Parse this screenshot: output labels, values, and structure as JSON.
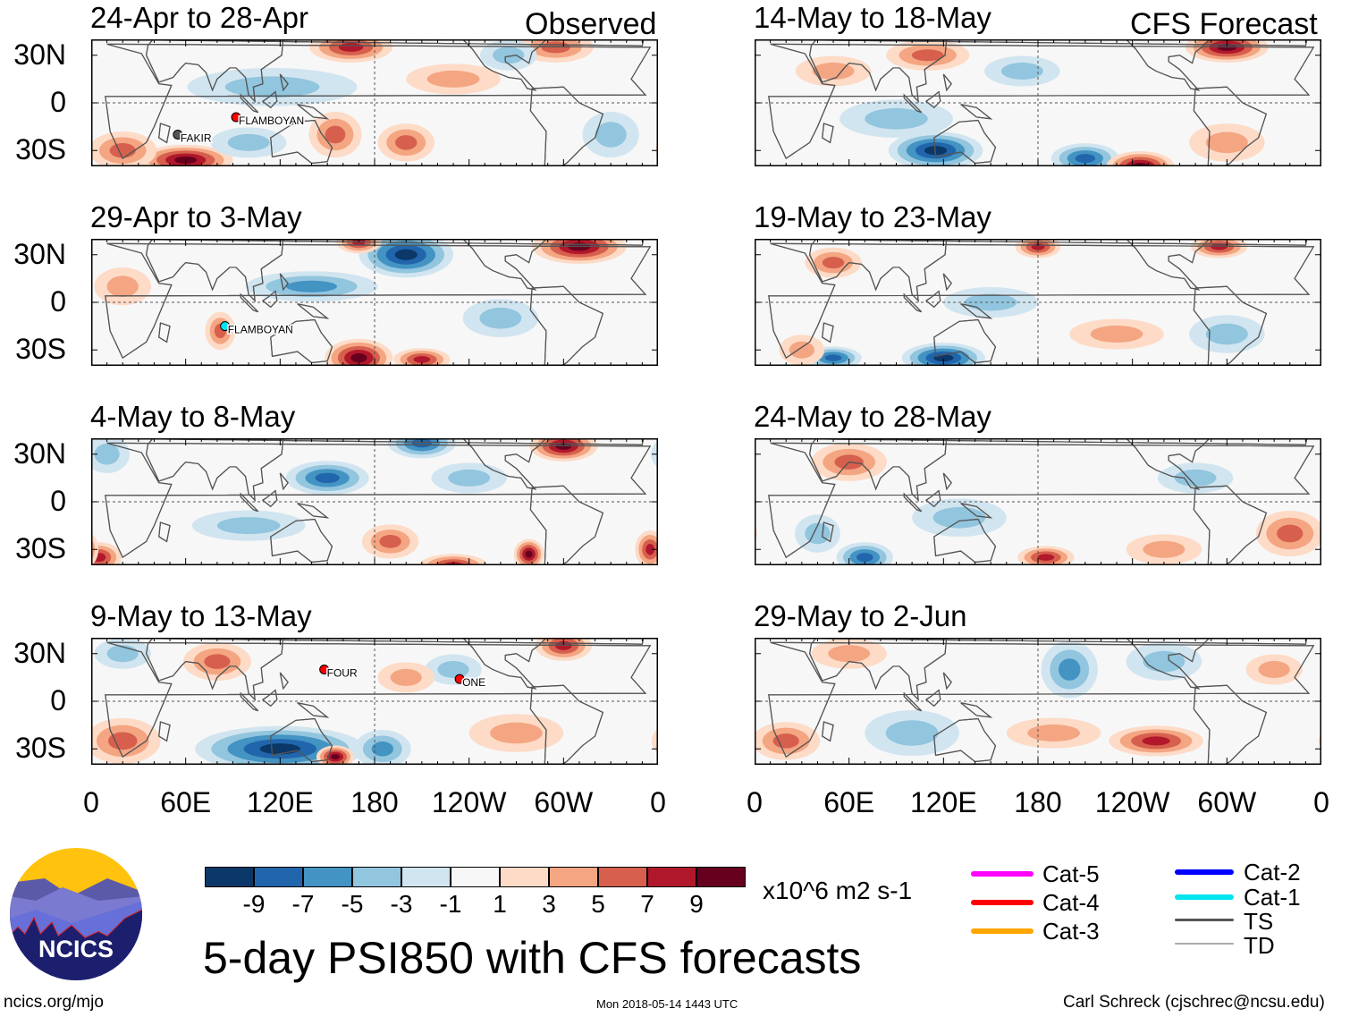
{
  "column_headers": {
    "left": "Observed",
    "right": "CFS Forecast"
  },
  "lat_labels": [
    "30N",
    "0",
    "30S"
  ],
  "lon_labels": [
    "0",
    "60E",
    "120E",
    "180",
    "120W",
    "60W",
    "0"
  ],
  "chart_data": {
    "type": "heatmap",
    "title": "5-day PSI850 with CFS forecasts",
    "units": "x10^6 m2 s-1",
    "lon_range": [
      0,
      360
    ],
    "lat_range": [
      -40,
      40
    ],
    "levels": [
      -9,
      -7,
      -5,
      -3,
      -1,
      1,
      3,
      5,
      7,
      9
    ],
    "level_labels": [
      "-9",
      "-7",
      "-5",
      "-3",
      "-1",
      "1",
      "3",
      "5",
      "7",
      "9"
    ],
    "colors": [
      "#0b3868",
      "#2166ac",
      "#4393c3",
      "#92c5de",
      "#d1e5f0",
      "#f7f7f7",
      "#fddbc7",
      "#f4a582",
      "#d6604d",
      "#b2182b",
      "#67001f"
    ],
    "panels": [
      {
        "title": "24-Apr to 28-Apr",
        "column": "left",
        "row": 0,
        "anomalies": [
          [
            165,
            35,
            7,
            22,
            8
          ],
          [
            60,
            -36,
            9,
            25,
            8
          ],
          [
            20,
            -30,
            5,
            18,
            10
          ],
          [
            115,
            10,
            -3,
            45,
            10
          ],
          [
            155,
            -20,
            5,
            14,
            12
          ],
          [
            200,
            -25,
            5,
            15,
            10
          ],
          [
            295,
            35,
            5,
            20,
            8
          ],
          [
            230,
            15,
            3,
            25,
            8
          ],
          [
            265,
            30,
            -3,
            15,
            8
          ],
          [
            330,
            -20,
            -3,
            15,
            12
          ],
          [
            100,
            -25,
            -3,
            20,
            8
          ]
        ],
        "storms": [
          {
            "name": "FLAMBOYAN",
            "lon": 92,
            "lat": -9,
            "category": "Cat-4"
          },
          {
            "name": "FAKIR",
            "lon": 55,
            "lat": -20,
            "category": "TS"
          }
        ]
      },
      {
        "title": "29-Apr to 3-May",
        "column": "left",
        "row": 1,
        "anomalies": [
          [
            200,
            30,
            -9,
            25,
            12
          ],
          [
            140,
            10,
            -5,
            35,
            8
          ],
          [
            310,
            35,
            9,
            25,
            9
          ],
          [
            170,
            -35,
            9,
            18,
            10
          ],
          [
            210,
            -36,
            7,
            15,
            6
          ],
          [
            82,
            -18,
            5,
            8,
            10
          ],
          [
            170,
            38,
            7,
            12,
            6
          ],
          [
            260,
            -10,
            -3,
            20,
            10
          ],
          [
            20,
            10,
            3,
            15,
            10
          ]
        ],
        "storms": [
          {
            "name": "FLAMBOYAN",
            "lon": 85,
            "lat": -15,
            "category": "Cat-1"
          }
        ]
      },
      {
        "title": "4-May to 8-May",
        "column": "left",
        "row": 2,
        "anomalies": [
          [
            210,
            37,
            -7,
            18,
            8
          ],
          [
            300,
            35,
            9,
            18,
            8
          ],
          [
            150,
            15,
            -7,
            22,
            9
          ],
          [
            190,
            -25,
            5,
            15,
            9
          ],
          [
            230,
            -40,
            7,
            18,
            6
          ],
          [
            278,
            -33,
            9,
            8,
            8
          ],
          [
            5,
            -35,
            7,
            12,
            8
          ],
          [
            100,
            -15,
            -3,
            30,
            8
          ],
          [
            10,
            30,
            -3,
            12,
            10
          ],
          [
            355,
            -30,
            7,
            8,
            10
          ],
          [
            240,
            15,
            -3,
            20,
            8
          ]
        ],
        "storms": []
      },
      {
        "title": "9-May to 13-May",
        "column": "left",
        "row": 3,
        "anomalies": [
          [
            120,
            -30,
            -9,
            45,
            12
          ],
          [
            155,
            -35,
            9,
            10,
            6
          ],
          [
            185,
            -30,
            -5,
            15,
            10
          ],
          [
            20,
            -25,
            5,
            20,
            12
          ],
          [
            80,
            25,
            5,
            18,
            10
          ],
          [
            300,
            35,
            7,
            15,
            8
          ],
          [
            270,
            -20,
            3,
            25,
            10
          ],
          [
            230,
            20,
            -3,
            15,
            8
          ],
          [
            200,
            15,
            3,
            15,
            8
          ],
          [
            20,
            30,
            -3,
            15,
            8
          ]
        ],
        "storms": [
          {
            "name": "FOUR",
            "lon": 148,
            "lat": 20,
            "category": "Cat-4"
          },
          {
            "name": "ONE",
            "lon": 234,
            "lat": 14,
            "category": "Cat-4"
          }
        ]
      },
      {
        "title": "14-May to 18-May",
        "column": "right",
        "row": 0,
        "anomalies": [
          [
            300,
            35,
            9,
            22,
            8
          ],
          [
            115,
            -30,
            -9,
            25,
            10
          ],
          [
            210,
            -35,
            -7,
            18,
            8
          ],
          [
            245,
            -40,
            9,
            18,
            8
          ],
          [
            110,
            30,
            5,
            22,
            8
          ],
          [
            50,
            20,
            3,
            20,
            8
          ],
          [
            90,
            -10,
            -3,
            30,
            10
          ],
          [
            300,
            -25,
            3,
            20,
            10
          ],
          [
            170,
            20,
            -3,
            20,
            8
          ]
        ],
        "storms": []
      },
      {
        "title": "19-May to 23-May",
        "column": "right",
        "row": 1,
        "anomalies": [
          [
            180,
            35,
            7,
            12,
            6
          ],
          [
            295,
            35,
            7,
            15,
            6
          ],
          [
            50,
            25,
            5,
            15,
            8
          ],
          [
            120,
            -35,
            -9,
            22,
            8
          ],
          [
            50,
            -35,
            -7,
            15,
            6
          ],
          [
            150,
            0,
            -3,
            25,
            8
          ],
          [
            30,
            -30,
            3,
            12,
            8
          ],
          [
            300,
            -20,
            -3,
            20,
            10
          ],
          [
            230,
            -20,
            3,
            25,
            8
          ]
        ],
        "storms": []
      },
      {
        "title": "24-May to 28-May",
        "column": "right",
        "row": 2,
        "anomalies": [
          [
            60,
            25,
            5,
            20,
            10
          ],
          [
            70,
            -35,
            -7,
            15,
            8
          ],
          [
            185,
            -35,
            7,
            15,
            6
          ],
          [
            130,
            -10,
            -3,
            25,
            10
          ],
          [
            340,
            -20,
            5,
            18,
            12
          ],
          [
            40,
            -20,
            -3,
            12,
            10
          ],
          [
            280,
            15,
            -3,
            20,
            8
          ],
          [
            260,
            -30,
            3,
            20,
            8
          ]
        ],
        "storms": []
      },
      {
        "title": "29-May to 2-Jun",
        "column": "right",
        "row": 3,
        "anomalies": [
          [
            200,
            20,
            -5,
            15,
            15
          ],
          [
            260,
            25,
            -3,
            20,
            10
          ],
          [
            255,
            -25,
            7,
            25,
            8
          ],
          [
            20,
            -25,
            5,
            18,
            10
          ],
          [
            60,
            30,
            3,
            20,
            8
          ],
          [
            100,
            -20,
            -3,
            25,
            12
          ],
          [
            330,
            20,
            3,
            15,
            8
          ],
          [
            190,
            -20,
            3,
            25,
            8
          ]
        ],
        "storms": []
      }
    ]
  },
  "legend": {
    "items": [
      {
        "label": "Cat-5",
        "color": "#ff00ff"
      },
      {
        "label": "Cat-4",
        "color": "#ff0000"
      },
      {
        "label": "Cat-3",
        "color": "#ffa500"
      },
      {
        "label": "Cat-2",
        "color": "#0000ff"
      },
      {
        "label": "Cat-1",
        "color": "#00e5ee"
      },
      {
        "label": "TS",
        "color": "#555555"
      },
      {
        "label": "TD",
        "color": "#aaaaaa"
      }
    ]
  },
  "logo": {
    "text": "NCICS"
  },
  "footer": {
    "left": "ncics.org/mjo",
    "center": "Mon 2018-05-14 1443 UTC",
    "right": "Carl Schreck (cjschrec@ncsu.edu)"
  }
}
